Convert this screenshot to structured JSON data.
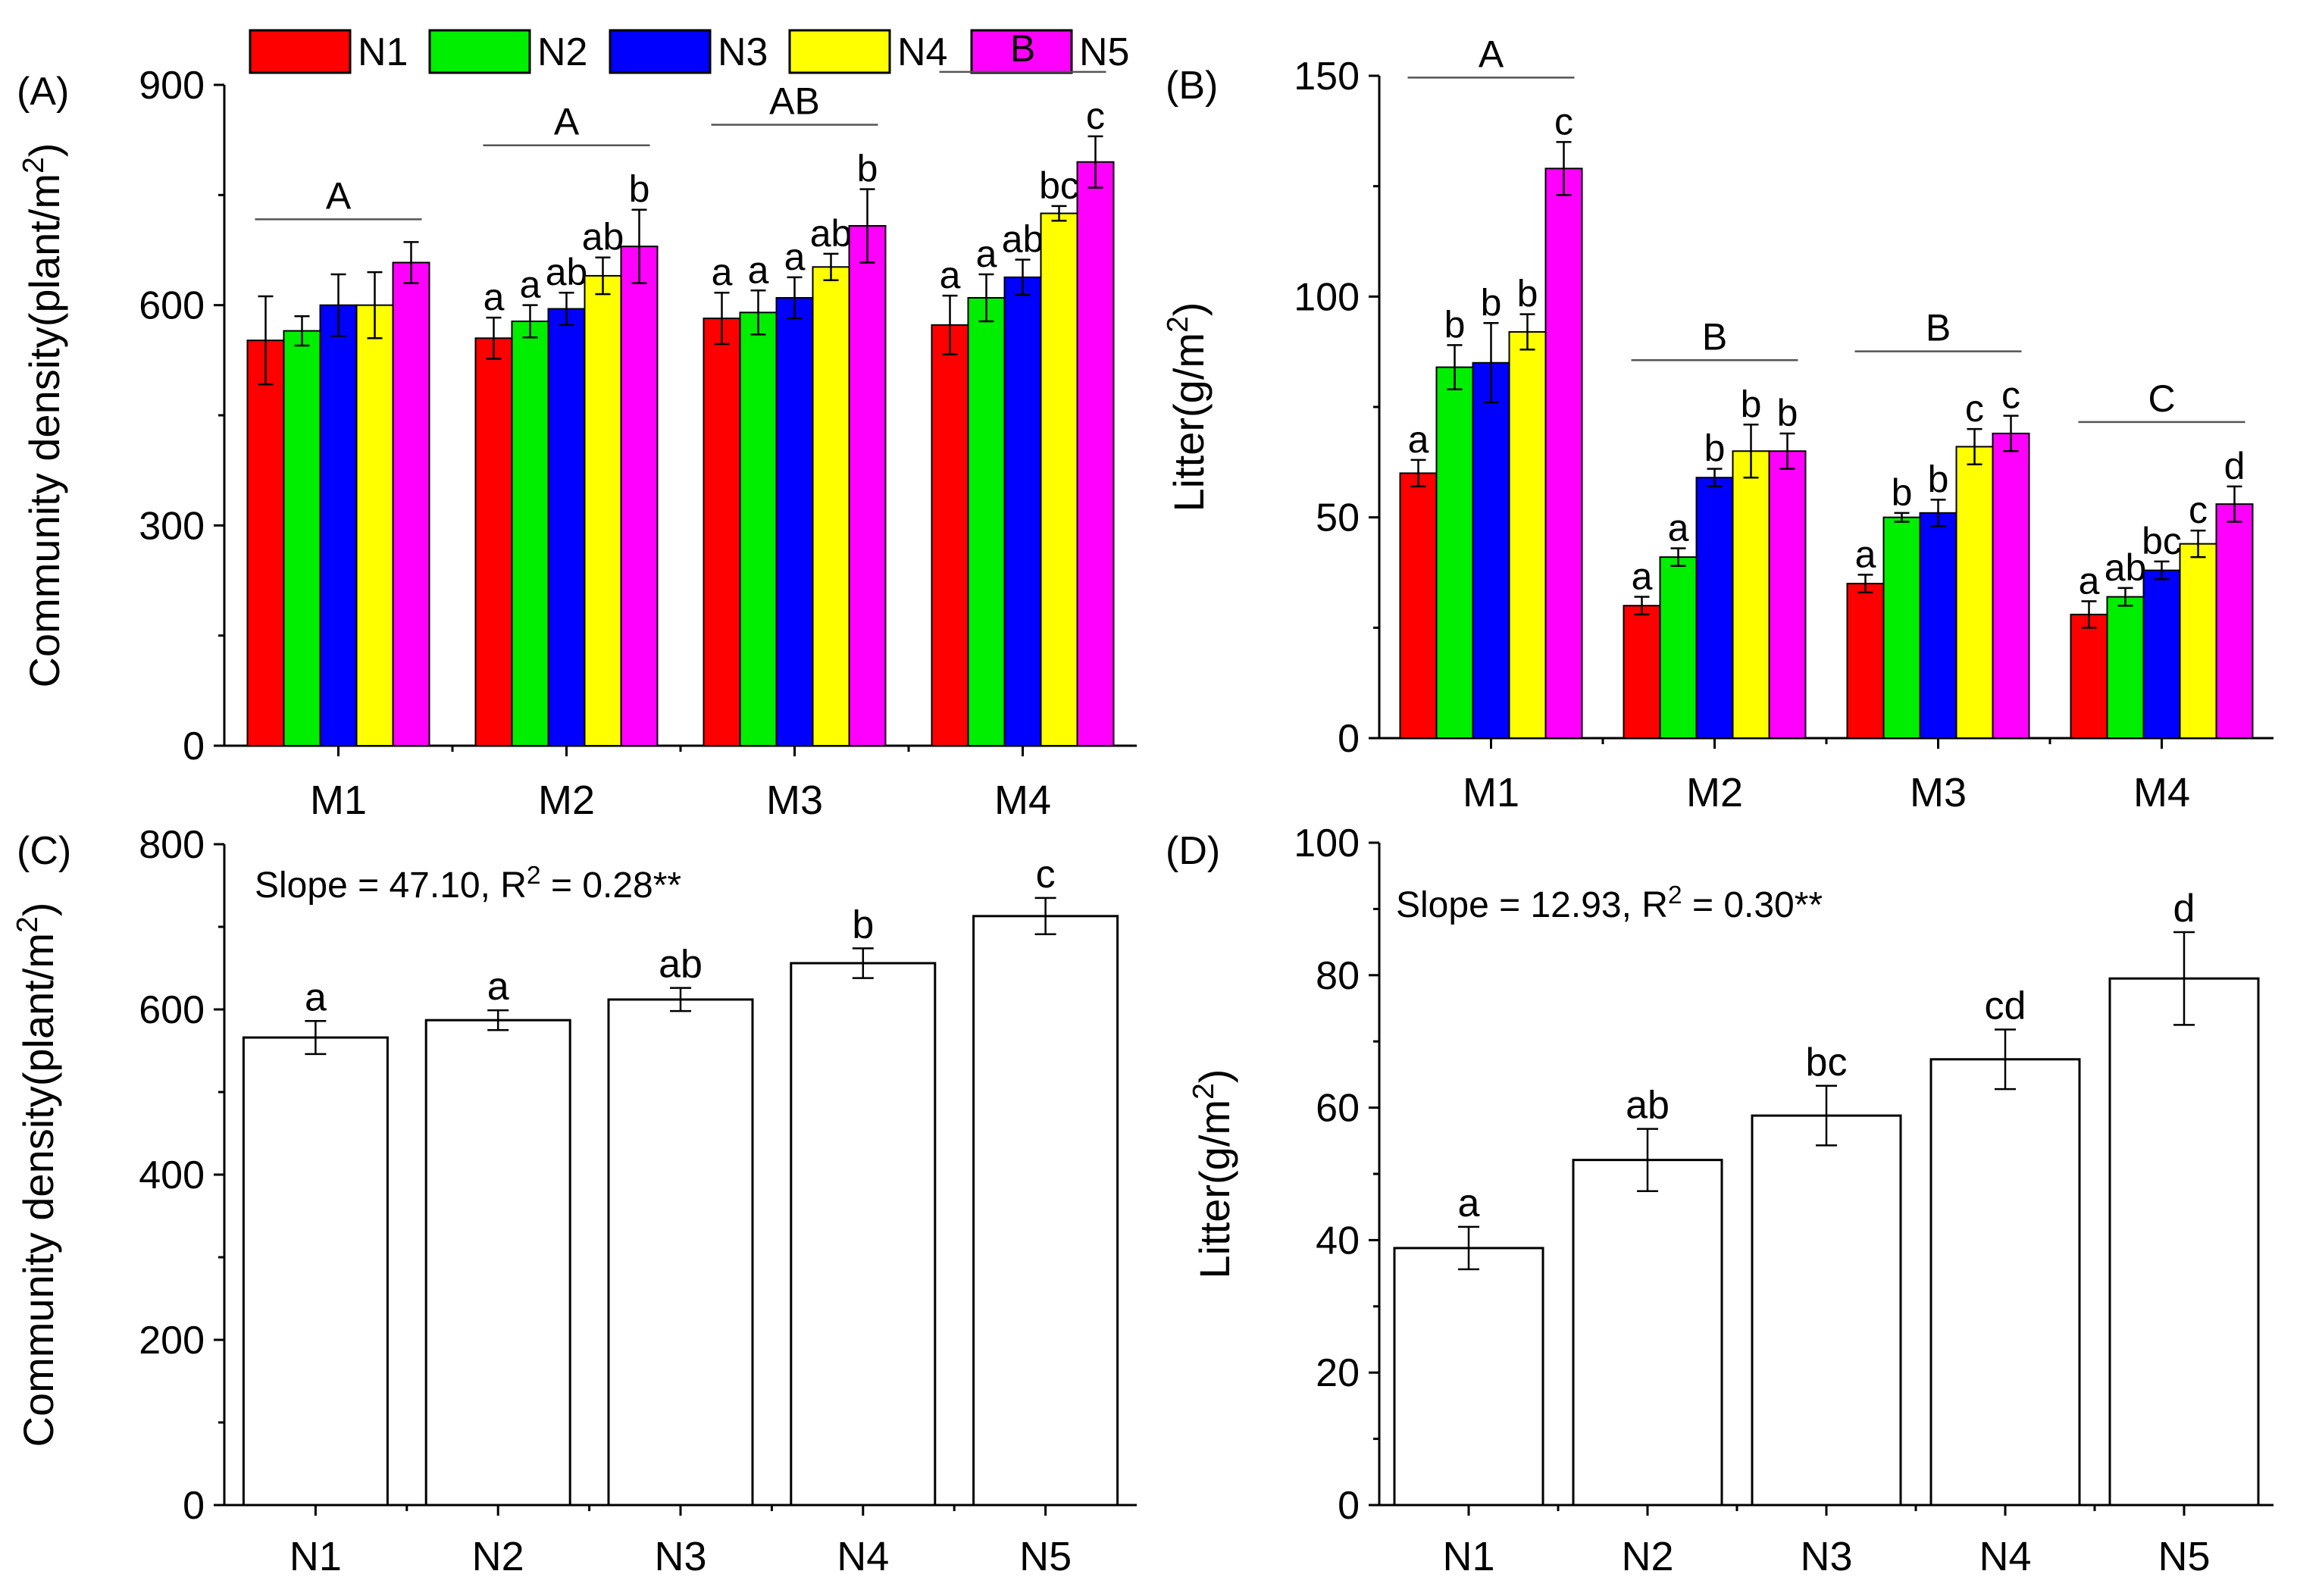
{
  "legend": {
    "items": [
      {
        "label": "N1",
        "color": "#ff0000"
      },
      {
        "label": "N2",
        "color": "#00ee00"
      },
      {
        "label": "N3",
        "color": "#0000ff"
      },
      {
        "label": "N4",
        "color": "#ffff00"
      },
      {
        "label": "N5",
        "color": "#ff00ff"
      }
    ]
  },
  "chart_data": [
    {
      "panel": "(A)",
      "type": "bar",
      "ylabel": "Community density(plant/m²)",
      "ylim": [
        0,
        900
      ],
      "yticks": [
        "0",
        "300",
        "600",
        "900"
      ],
      "categories": [
        "M1",
        "M2",
        "M3",
        "M4"
      ],
      "series": [
        {
          "name": "N1",
          "values": [
            552,
            555,
            582,
            573
          ],
          "errors": [
            60,
            28,
            35,
            40
          ],
          "letters": [
            "",
            "a",
            "a",
            "a"
          ]
        },
        {
          "name": "N2",
          "values": [
            565,
            578,
            590,
            610
          ],
          "errors": [
            20,
            22,
            30,
            32
          ],
          "letters": [
            "",
            "a",
            "a",
            "a"
          ]
        },
        {
          "name": "N3",
          "values": [
            600,
            595,
            610,
            638
          ],
          "errors": [
            42,
            22,
            28,
            24
          ],
          "letters": [
            "",
            "ab",
            "a",
            "ab"
          ]
        },
        {
          "name": "N4",
          "values": [
            600,
            640,
            652,
            725
          ],
          "errors": [
            45,
            25,
            18,
            10
          ],
          "letters": [
            "",
            "ab",
            "ab",
            "bc"
          ]
        },
        {
          "name": "N5",
          "values": [
            658,
            680,
            708,
            795
          ],
          "errors": [
            28,
            50,
            50,
            35
          ],
          "letters": [
            "",
            "b",
            "b",
            "c"
          ]
        }
      ],
      "group_letters": [
        "A",
        "A",
        "AB",
        "B"
      ]
    },
    {
      "panel": "(B)",
      "type": "bar",
      "ylabel": "Litter(g/m²)",
      "ylim": [
        0,
        150
      ],
      "yticks": [
        "0",
        "50",
        "100",
        "150"
      ],
      "categories": [
        "M1",
        "M2",
        "M3",
        "M4"
      ],
      "series": [
        {
          "name": "N1",
          "values": [
            60,
            30,
            35,
            28
          ],
          "errors": [
            3,
            2,
            2,
            3
          ],
          "letters": [
            "a",
            "a",
            "a",
            "a"
          ]
        },
        {
          "name": "N2",
          "values": [
            84,
            41,
            50,
            32
          ],
          "errors": [
            5,
            2,
            1,
            2
          ],
          "letters": [
            "b",
            "a",
            "b",
            "ab"
          ]
        },
        {
          "name": "N3",
          "values": [
            85,
            59,
            51,
            38
          ],
          "errors": [
            9,
            2,
            3,
            2
          ],
          "letters": [
            "b",
            "b",
            "b",
            "bc"
          ]
        },
        {
          "name": "N4",
          "values": [
            92,
            65,
            66,
            44
          ],
          "errors": [
            4,
            6,
            4,
            3
          ],
          "letters": [
            "b",
            "b",
            "c",
            "c"
          ]
        },
        {
          "name": "N5",
          "values": [
            129,
            65,
            69,
            53
          ],
          "errors": [
            6,
            4,
            4,
            4
          ],
          "letters": [
            "c",
            "b",
            "c",
            "d"
          ]
        }
      ],
      "group_letters": [
        "A",
        "B",
        "B",
        "C"
      ]
    },
    {
      "panel": "(C)",
      "type": "bar",
      "ylabel": "Community density(plant/m²)",
      "ylim": [
        0,
        800
      ],
      "yticks": [
        "0",
        "200",
        "400",
        "600",
        "800"
      ],
      "categories": [
        "N1",
        "N2",
        "N3",
        "N4",
        "N5"
      ],
      "values": [
        566,
        587,
        612,
        656,
        713
      ],
      "errors": [
        20,
        12,
        14,
        18,
        22
      ],
      "letters": [
        "a",
        "a",
        "ab",
        "b",
        "c"
      ],
      "annotation": "Slope = 47.10, R² = 0.28**"
    },
    {
      "panel": "(D)",
      "type": "bar",
      "ylabel": "Litter(g/m²)",
      "ylim": [
        0,
        100
      ],
      "yticks": [
        "0",
        "20",
        "40",
        "60",
        "80",
        "100"
      ],
      "categories": [
        "N1",
        "N2",
        "N3",
        "N4",
        "N5"
      ],
      "values": [
        38.8,
        52.1,
        58.8,
        67.3,
        79.5
      ],
      "errors": [
        3.2,
        4.7,
        4.5,
        4.5,
        7.0
      ],
      "letters": [
        "a",
        "ab",
        "bc",
        "cd",
        "d"
      ],
      "annotation": "Slope = 12.93, R² = 0.30**"
    }
  ]
}
